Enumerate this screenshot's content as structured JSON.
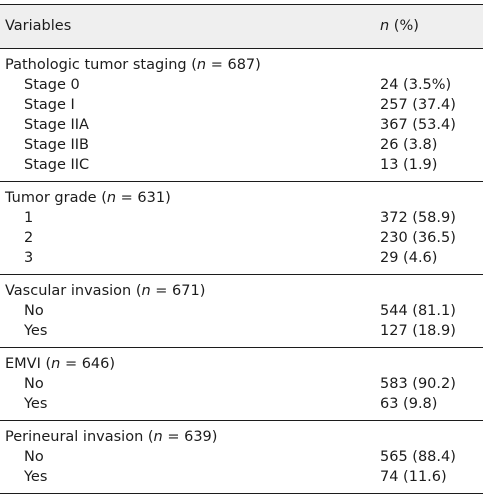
{
  "header": {
    "variables": "Variables",
    "n_italic": "n",
    "n_rest": " (%)"
  },
  "groups": [
    {
      "title_pre": "Pathologic tumor staging (",
      "title_n": "n",
      "title_post": " = 687)",
      "rows": [
        {
          "label": "Stage 0",
          "value": "24 (3.5%)"
        },
        {
          "label": "Stage I",
          "value": "257 (37.4)"
        },
        {
          "label": "Stage IIA",
          "value": "367 (53.4)"
        },
        {
          "label": "Stage IIB",
          "value": "26 (3.8)"
        },
        {
          "label": "Stage IIC",
          "value": "13 (1.9)"
        }
      ]
    },
    {
      "title_pre": "Tumor grade (",
      "title_n": "n",
      "title_post": " = 631)",
      "rows": [
        {
          "label": "1",
          "value": "372 (58.9)"
        },
        {
          "label": "2",
          "value": "230 (36.5)"
        },
        {
          "label": "3",
          "value": "29 (4.6)"
        }
      ]
    },
    {
      "title_pre": "Vascular invasion (",
      "title_n": "n",
      "title_post": " = 671)",
      "rows": [
        {
          "label": "No",
          "value": "544 (81.1)"
        },
        {
          "label": "Yes",
          "value": "127 (18.9)"
        }
      ]
    },
    {
      "title_pre": "EMVI (",
      "title_n": "n",
      "title_post": " = 646)",
      "rows": [
        {
          "label": "No",
          "value": "583 (90.2)"
        },
        {
          "label": "Yes",
          "value": "63 (9.8)"
        }
      ]
    },
    {
      "title_pre": "Perineural invasion (",
      "title_n": "n",
      "title_post": " = 639)",
      "rows": [
        {
          "label": "No",
          "value": "565 (88.4)"
        },
        {
          "label": "Yes",
          "value": "74 (11.6)"
        }
      ]
    }
  ]
}
